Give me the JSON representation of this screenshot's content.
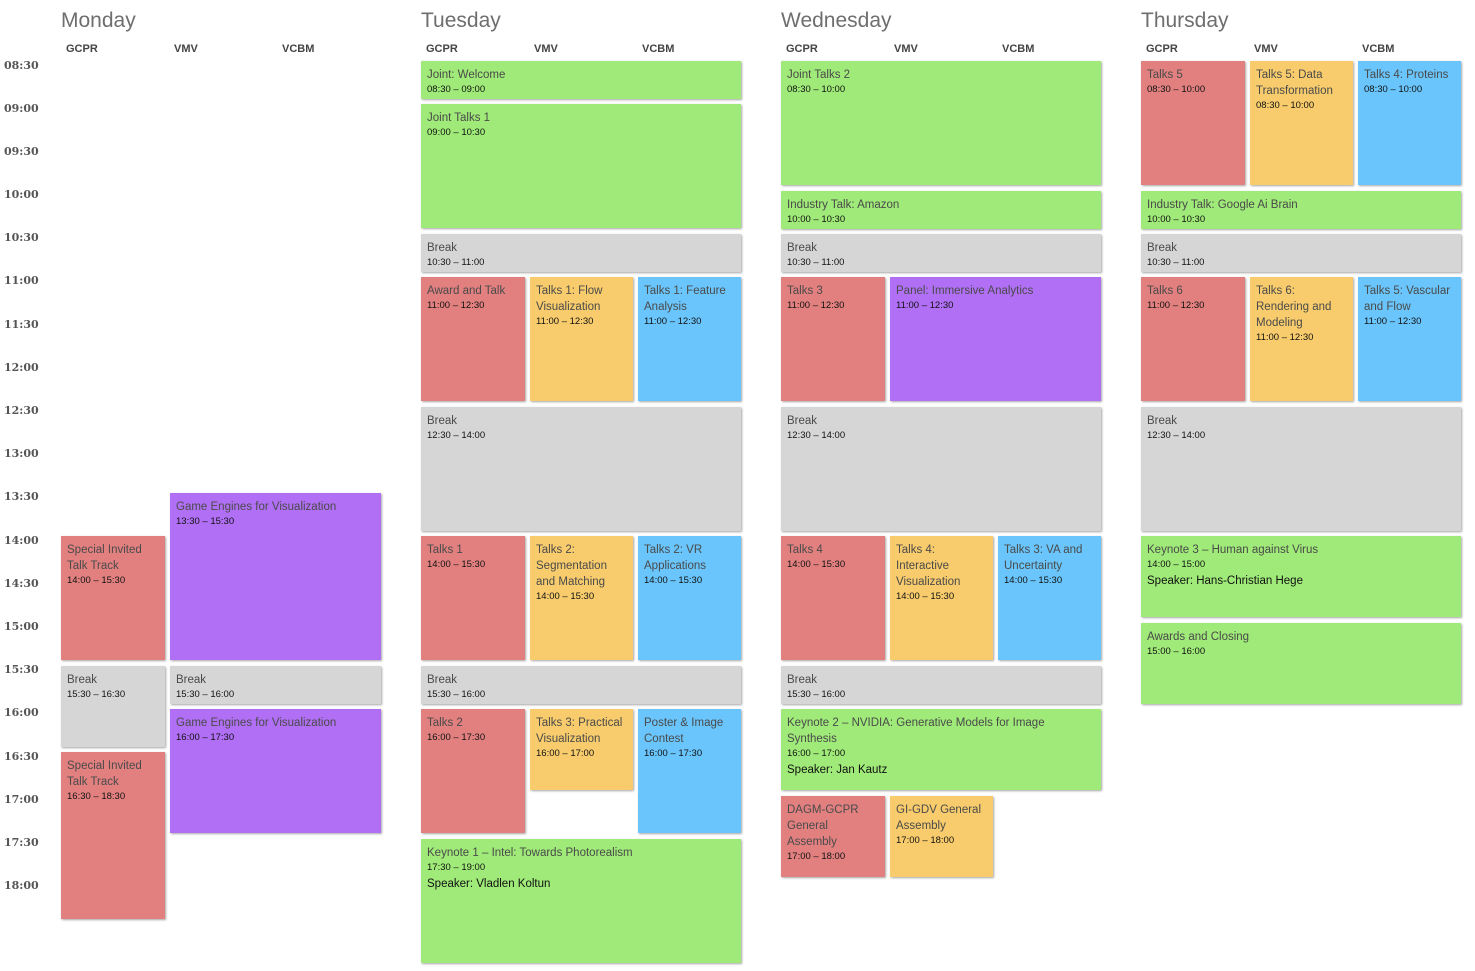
{
  "times": [
    "08:30",
    "09:00",
    "09:30",
    "10:00",
    "10:30",
    "11:00",
    "11:30",
    "12:00",
    "12:30",
    "13:00",
    "13:30",
    "14:00",
    "14:30",
    "15:00",
    "15:30",
    "16:00",
    "16:30",
    "17:00",
    "17:30",
    "18:00"
  ],
  "days": [
    {
      "name": "Monday",
      "tracks": [
        "GCPR",
        "VMV",
        "VCBM"
      ]
    },
    {
      "name": "Tuesday",
      "tracks": [
        "GCPR",
        "VMV",
        "VCBM"
      ]
    },
    {
      "name": "Wednesday",
      "tracks": [
        "GCPR",
        "VMV",
        "VCBM"
      ]
    },
    {
      "name": "Thursday",
      "tracks": [
        "GCPR",
        "VMV",
        "VCBM"
      ]
    }
  ],
  "colors": {
    "joint": "#9fea78",
    "break": "#d6d6d6",
    "gcpr": "#e28080",
    "vmv": "#f8cc6c",
    "vcbm": "#69c5fb",
    "special": "#b06ff4"
  },
  "events": {
    "mon_special1": {
      "title": "Special Invited Talk Track",
      "time": "14:00 – 15:30"
    },
    "mon_game1": {
      "title": "Game Engines for Visualization",
      "time": "13:30 – 15:30"
    },
    "mon_break_gcpr": {
      "title": "Break",
      "time": "15:30 – 16:30"
    },
    "mon_break_vmv": {
      "title": "Break",
      "time": "15:30 – 16:00"
    },
    "mon_game2": {
      "title": "Game Engines for Visualization",
      "time": "16:00 – 17:30"
    },
    "mon_special2": {
      "title": "Special Invited Talk Track",
      "time": "16:30 – 18:30"
    },
    "tue_welcome": {
      "title": "Joint: Welcome",
      "time": "08:30 – 09:00"
    },
    "tue_joint1": {
      "title": "Joint Talks 1",
      "time": "09:00 – 10:30"
    },
    "tue_break1": {
      "title": "Break",
      "time": "10:30 – 11:00"
    },
    "tue_award": {
      "title": "Award and Talk",
      "time": "11:00 – 12:30"
    },
    "tue_flow": {
      "title": "Talks 1: Flow Visualization",
      "time": "11:00 – 12:30"
    },
    "tue_feature": {
      "title": "Talks 1: Feature Analysis",
      "time": "11:00 – 12:30"
    },
    "tue_break2": {
      "title": "Break",
      "time": "12:30 – 14:00"
    },
    "tue_talks1": {
      "title": "Talks 1",
      "time": "14:00 – 15:30"
    },
    "tue_seg": {
      "title": "Talks 2: Segmentation and Matching",
      "time": "14:00 – 15:30"
    },
    "tue_vr": {
      "title": "Talks 2: VR Applications",
      "time": "14:00 – 15:30"
    },
    "tue_break3": {
      "title": "Break",
      "time": "15:30 – 16:00"
    },
    "tue_talks2": {
      "title": "Talks 2",
      "time": "16:00 – 17:30"
    },
    "tue_practical": {
      "title": "Talks 3: Practical Visualization",
      "time": "16:00 – 17:00"
    },
    "tue_poster": {
      "title": "Poster & Image Contest",
      "time": "16:00 – 17:30"
    },
    "tue_keynote": {
      "title": "Keynote 1 – Intel: Towards Photorealism",
      "time": "17:30 – 19:00",
      "speaker": "Speaker: Vladlen Koltun"
    },
    "wed_joint2": {
      "title": "Joint Talks 2",
      "time": "08:30 – 10:00"
    },
    "wed_amazon": {
      "title": "Industry Talk: Amazon",
      "time": "10:00 – 10:30"
    },
    "wed_break1": {
      "title": "Break",
      "time": "10:30 – 11:00"
    },
    "wed_talks3": {
      "title": "Talks 3",
      "time": "11:00 – 12:30"
    },
    "wed_panel": {
      "title": "Panel: Immersive Analytics",
      "time": "11:00 – 12:30"
    },
    "wed_break2": {
      "title": "Break",
      "time": "12:30 – 14:00"
    },
    "wed_talks4": {
      "title": "Talks 4",
      "time": "14:00 – 15:30"
    },
    "wed_interactive": {
      "title": "Talks 4: Interactive Visualization",
      "time": "14:00 – 15:30"
    },
    "wed_va": {
      "title": "Talks 3: VA and Uncertainty",
      "time": "14:00 – 15:30"
    },
    "wed_break3": {
      "title": "Break",
      "time": "15:30 – 16:00"
    },
    "wed_keynote": {
      "title": "Keynote 2 – NVIDIA: Generative Models for Image Synthesis",
      "time": "16:00 – 17:00",
      "speaker": "Speaker: Jan Kautz"
    },
    "wed_dagm": {
      "title": "DAGM-GCPR General Assembly",
      "time": "17:00 – 18:00"
    },
    "wed_gigdv": {
      "title": "GI-GDV General Assembly",
      "time": "17:00 – 18:00"
    },
    "thu_talks5": {
      "title": "Talks 5",
      "time": "08:30 – 10:00"
    },
    "thu_data": {
      "title": "Talks 5: Data Transformation",
      "time": "08:30 – 10:00"
    },
    "thu_proteins": {
      "title": "Talks 4: Proteins",
      "time": "08:30 – 10:00"
    },
    "thu_google": {
      "title": "Industry Talk: Google Ai Brain",
      "time": "10:00 – 10:30"
    },
    "thu_break1": {
      "title": "Break",
      "time": "10:30 – 11:00"
    },
    "thu_talks6": {
      "title": "Talks 6",
      "time": "11:00 – 12:30"
    },
    "thu_render": {
      "title": "Talks 6: Rendering and Modeling",
      "time": "11:00 – 12:30"
    },
    "thu_vascular": {
      "title": "Talks 5: Vascular and Flow",
      "time": "11:00 – 12:30"
    },
    "thu_break2": {
      "title": "Break",
      "time": "12:30 – 14:00"
    },
    "thu_keynote": {
      "title": "Keynote 3 – Human against Virus",
      "time": "14:00 – 15:00",
      "speaker": "Speaker: Hans-Christian Hege"
    },
    "thu_closing": {
      "title": "Awards and Closing",
      "time": "15:00 – 16:00"
    }
  }
}
